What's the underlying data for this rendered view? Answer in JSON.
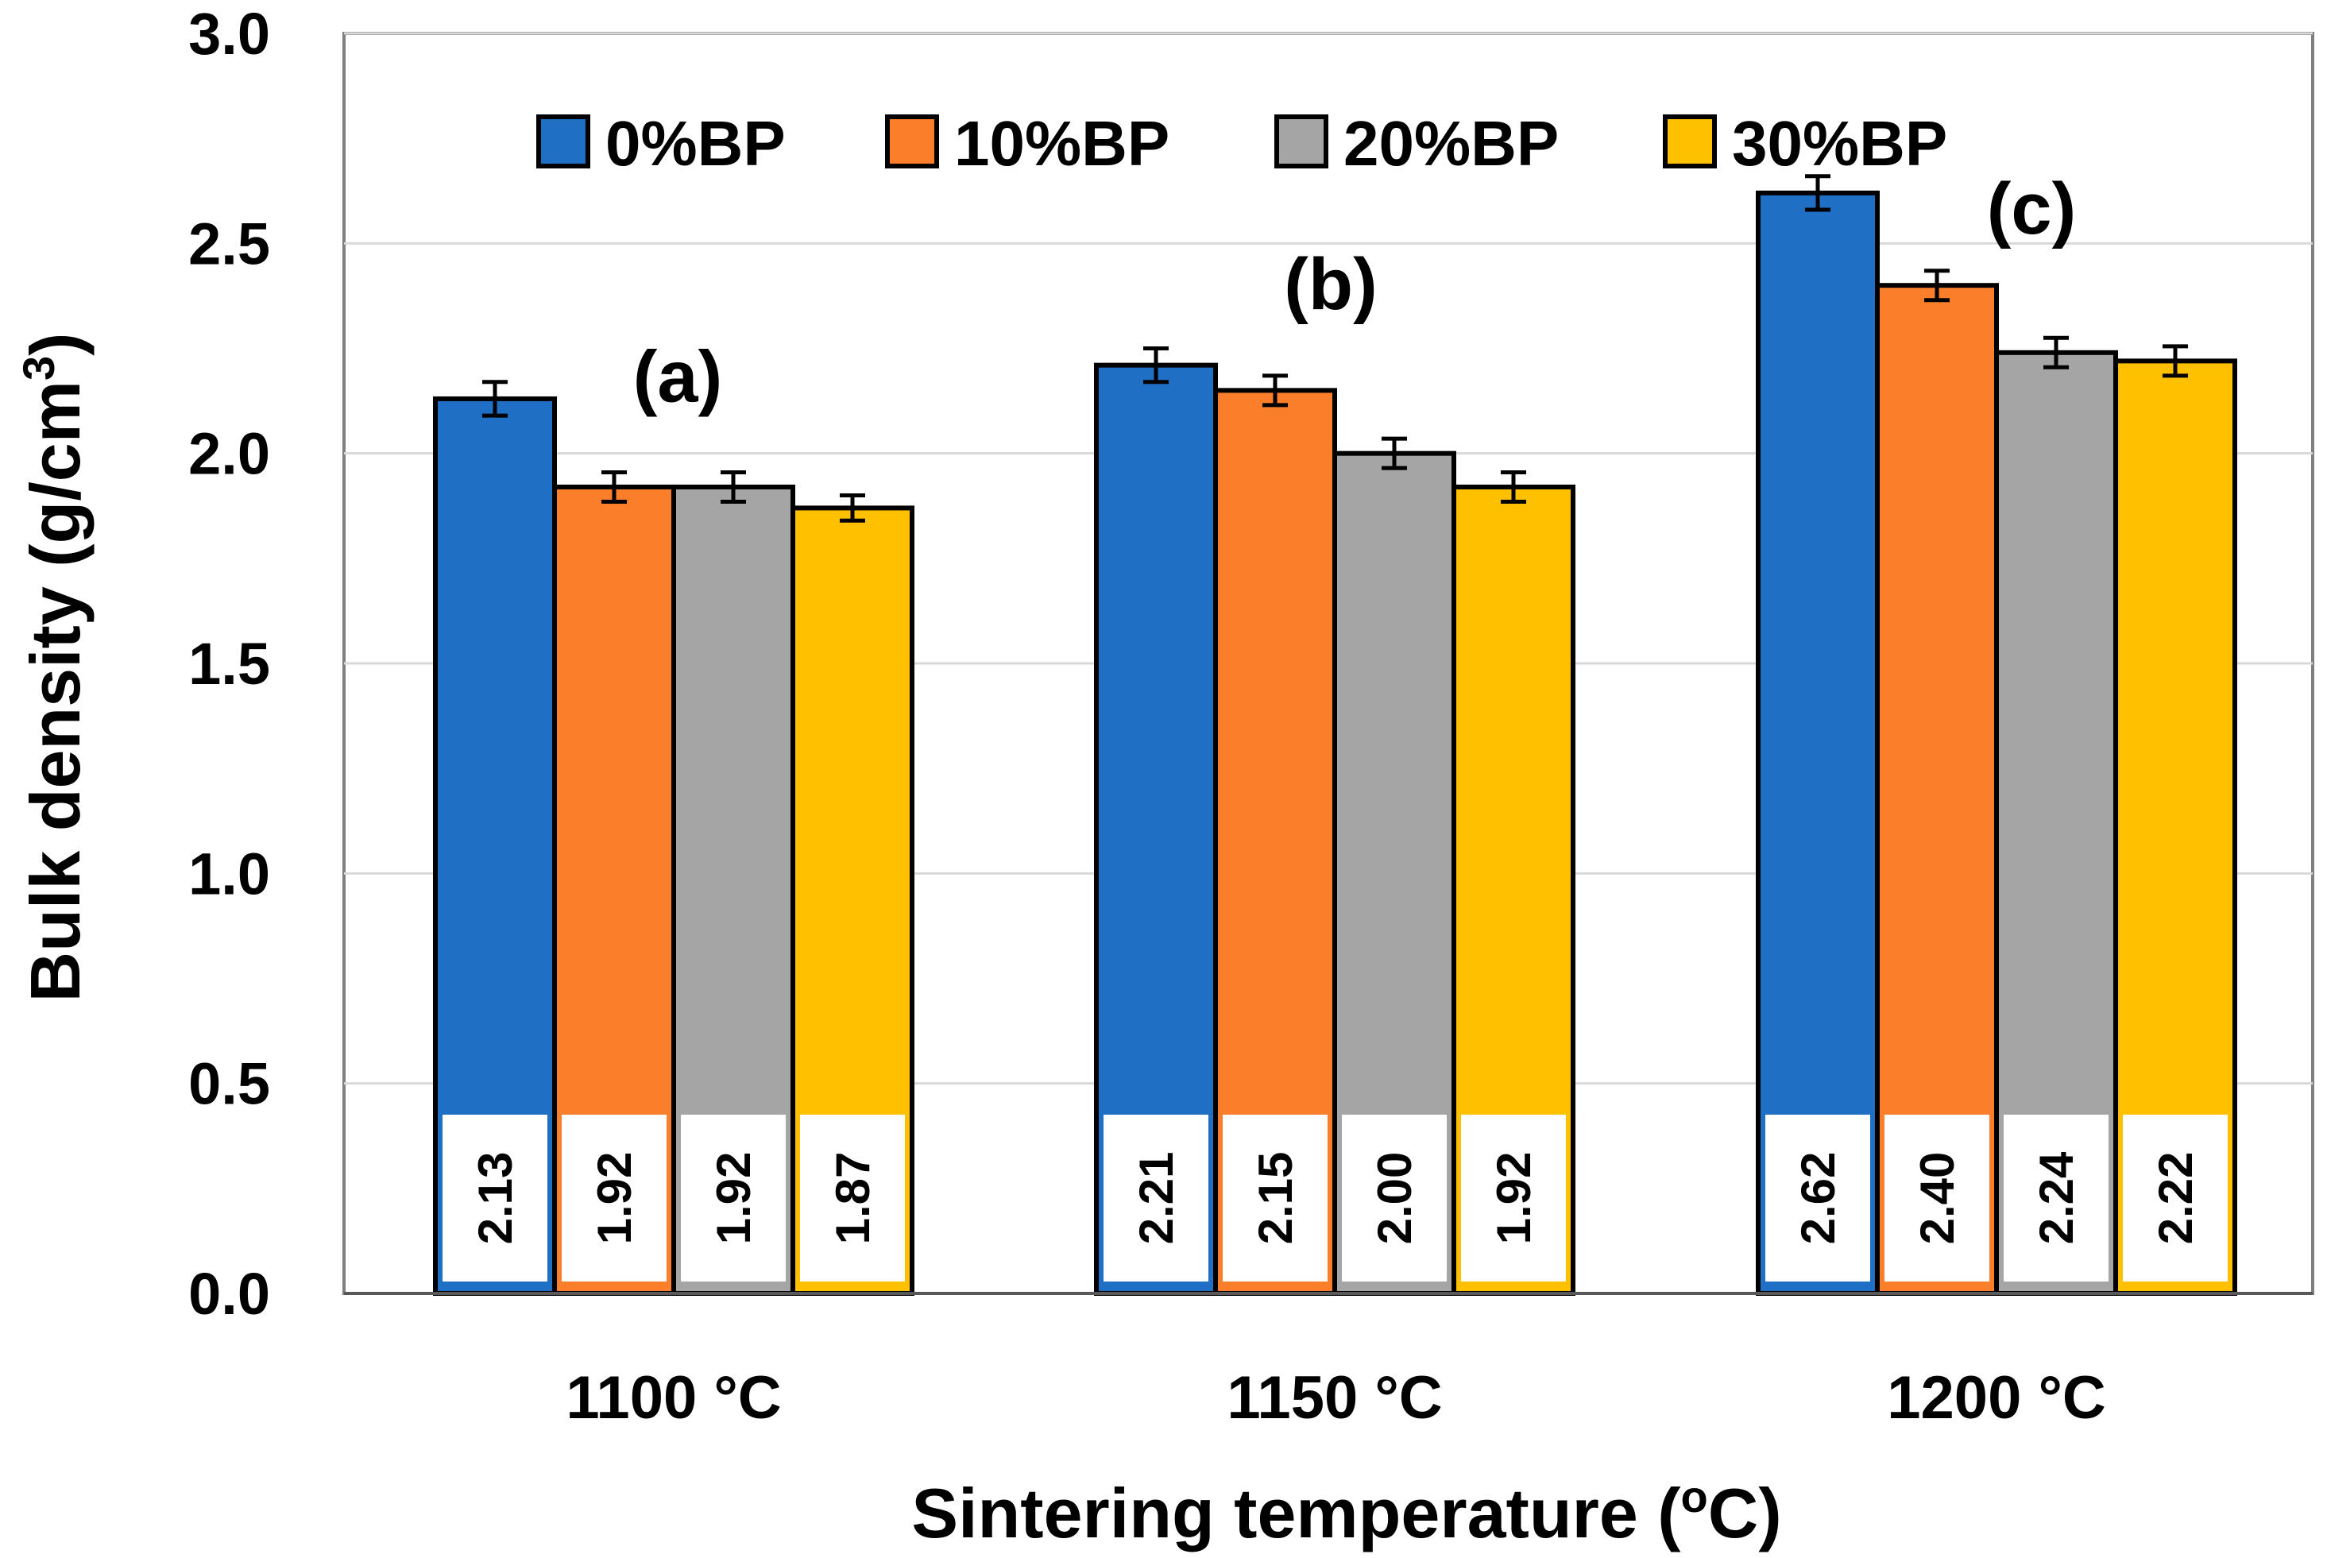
{
  "chart_data": {
    "type": "bar",
    "title": "",
    "xlabel": "Sintering temperature (",
    "xlabel_sup": "o",
    "xlabel_end": "C)",
    "ylabel": "Bulk density (g/cm",
    "ylabel_sup": "3",
    "ylabel_end": ")",
    "ylim": [
      0,
      3.0
    ],
    "yticks": [
      "0.0",
      "0.5",
      "1.0",
      "1.5",
      "2.0",
      "2.5",
      "3.0"
    ],
    "ytick_values": [
      0,
      0.5,
      1.0,
      1.5,
      2.0,
      2.5,
      3.0
    ],
    "grid": true,
    "legend_position": "top",
    "categories": [
      "1100 °C",
      "1150 °C",
      "1200 °C"
    ],
    "series": [
      {
        "name": "0%BP",
        "color": "#1f6fc5",
        "values": [
          2.13,
          2.21,
          2.62
        ],
        "labels": [
          "2.13",
          "2.21",
          "2.62"
        ],
        "errors": [
          0.04,
          0.04,
          0.04
        ]
      },
      {
        "name": "10%BP",
        "color": "#fb7f2a",
        "values": [
          1.92,
          2.15,
          2.4
        ],
        "labels": [
          "1.92",
          "2.15",
          "2.40"
        ],
        "errors": [
          0.035,
          0.035,
          0.035
        ]
      },
      {
        "name": "20%BP",
        "color": "#a5a5a5",
        "values": [
          1.92,
          2.0,
          2.24
        ],
        "labels": [
          "1.92",
          "2.00",
          "2.24"
        ],
        "errors": [
          0.035,
          0.035,
          0.035
        ]
      },
      {
        "name": "30%BP",
        "color": "#ffc000",
        "values": [
          1.87,
          1.92,
          2.22
        ],
        "labels": [
          "1.87",
          "1.92",
          "2.22"
        ],
        "errors": [
          0.03,
          0.035,
          0.035
        ]
      }
    ],
    "annotations": [
      "(a)",
      "(b)",
      "(c)"
    ],
    "annotation_values": [
      2.18,
      2.4,
      2.58
    ]
  }
}
